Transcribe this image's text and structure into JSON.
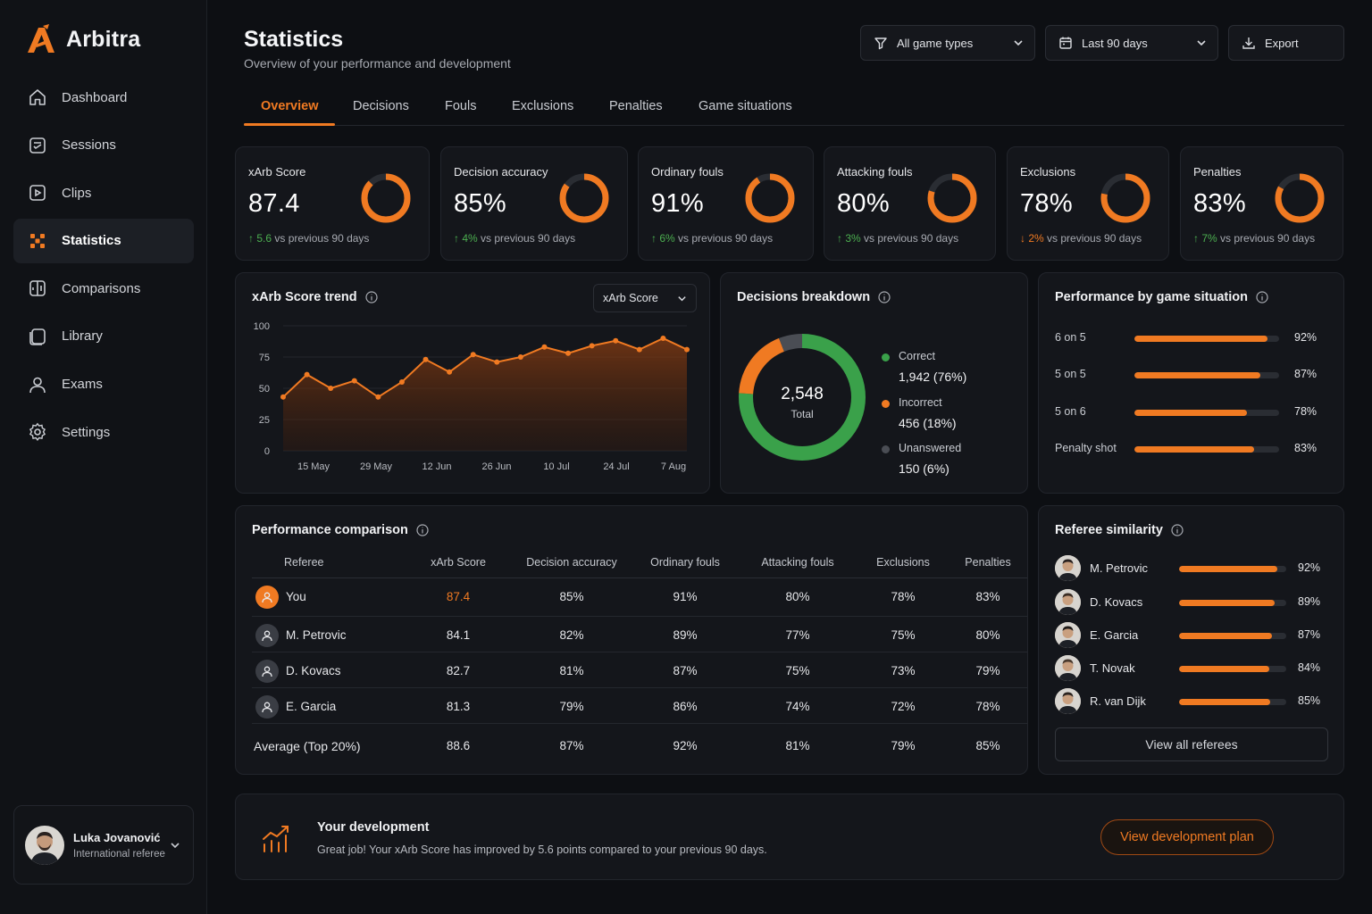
{
  "app": {
    "name": "Arbitra"
  },
  "sidebar": {
    "items": [
      {
        "label": "Dashboard",
        "icon": "home-icon"
      },
      {
        "label": "Sessions",
        "icon": "sessions-icon"
      },
      {
        "label": "Clips",
        "icon": "clips-icon"
      },
      {
        "label": "Statistics",
        "icon": "statistics-icon",
        "active": true
      },
      {
        "label": "Comparisons",
        "icon": "comparisons-icon"
      },
      {
        "label": "Library",
        "icon": "library-icon"
      },
      {
        "label": "Exams",
        "icon": "exams-icon"
      },
      {
        "label": "Settings",
        "icon": "settings-icon"
      }
    ]
  },
  "user": {
    "name": "Luka Jovanović",
    "role": "International referee"
  },
  "header": {
    "title": "Statistics",
    "subtitle": "Overview of your performance and development",
    "filter_game_types": "All game types",
    "filter_period": "Last 90 days",
    "export_label": "Export"
  },
  "tabs": [
    "Overview",
    "Decisions",
    "Fouls",
    "Exclusions",
    "Penalties",
    "Game situations"
  ],
  "kpis": [
    {
      "label": "xArb Score",
      "value": "87.4",
      "delta": "5.6",
      "direction": "up",
      "suffix": "vs previous 90 days",
      "fill": 0.874
    },
    {
      "label": "Decision accuracy",
      "value": "85%",
      "delta": "4%",
      "direction": "up",
      "suffix": "vs previous 90 days",
      "fill": 0.85
    },
    {
      "label": "Ordinary fouls",
      "value": "91%",
      "delta": "6%",
      "direction": "up",
      "suffix": "vs previous 90 days",
      "fill": 0.91
    },
    {
      "label": "Attacking fouls",
      "value": "80%",
      "delta": "3%",
      "direction": "up",
      "suffix": "vs previous 90 days",
      "fill": 0.8
    },
    {
      "label": "Exclusions",
      "value": "78%",
      "delta": "2%",
      "direction": "down",
      "suffix": "vs previous 90 days",
      "fill": 0.78
    },
    {
      "label": "Penalties",
      "value": "83%",
      "delta": "7%",
      "direction": "up",
      "suffix": "vs previous 90 days",
      "fill": 0.83
    }
  ],
  "trend": {
    "title": "xArb Score trend",
    "select_value": "xArb Score"
  },
  "chart_data": {
    "type": "area",
    "x_tick_labels": [
      "15 May",
      "29 May",
      "12 Jun",
      "26 Jun",
      "10 Jul",
      "24 Jul",
      "7 Aug"
    ],
    "y_ticks": [
      0,
      25,
      50,
      75,
      100
    ],
    "ylim": [
      0,
      100
    ],
    "values": [
      43,
      61,
      50,
      56,
      43,
      55,
      73,
      63,
      77,
      71,
      75,
      83,
      78,
      84,
      88,
      81,
      90,
      81
    ],
    "color": "#f07a22"
  },
  "breakdown": {
    "title": "Decisions breakdown",
    "total": "2,548",
    "total_label": "Total",
    "segments": [
      {
        "name": "Correct",
        "value": "1,942 (76%)",
        "share": 0.76,
        "color": "#3aa14a"
      },
      {
        "name": "Incorrect",
        "value": "456 (18%)",
        "share": 0.18,
        "color": "#f07a22"
      },
      {
        "name": "Unanswered",
        "value": "150 (6%)",
        "share": 0.06,
        "color": "#4a4d54"
      }
    ]
  },
  "game_situation": {
    "title": "Performance by game situation",
    "rows": [
      {
        "label": "6 on 5",
        "value": "92%",
        "pct": 0.92
      },
      {
        "label": "5 on 5",
        "value": "87%",
        "pct": 0.87
      },
      {
        "label": "5 on 6",
        "value": "78%",
        "pct": 0.78
      },
      {
        "label": "Penalty shot",
        "value": "83%",
        "pct": 0.83
      }
    ]
  },
  "comparison": {
    "title": "Performance comparison",
    "columns": [
      "Referee",
      "xArb Score",
      "Decision accuracy",
      "Ordinary fouls",
      "Attacking fouls",
      "Exclusions",
      "Penalties"
    ],
    "rows": [
      {
        "name": "You",
        "cells": [
          "87.4",
          "85%",
          "91%",
          "80%",
          "78%",
          "83%"
        ],
        "highlight": true
      },
      {
        "name": "M. Petrovic",
        "cells": [
          "84.1",
          "82%",
          "89%",
          "77%",
          "75%",
          "80%"
        ]
      },
      {
        "name": "D. Kovacs",
        "cells": [
          "82.7",
          "81%",
          "87%",
          "75%",
          "73%",
          "79%"
        ]
      },
      {
        "name": "E. Garcia",
        "cells": [
          "81.3",
          "79%",
          "86%",
          "74%",
          "72%",
          "78%"
        ]
      }
    ],
    "average": {
      "name": "Average (Top 20%)",
      "cells": [
        "88.6",
        "87%",
        "92%",
        "81%",
        "79%",
        "85%"
      ]
    }
  },
  "similarity": {
    "title": "Referee similarity",
    "rows": [
      {
        "name": "M. Petrovic",
        "value": "92%",
        "pct": 0.92
      },
      {
        "name": "D. Kovacs",
        "value": "89%",
        "pct": 0.89
      },
      {
        "name": "E. Garcia",
        "value": "87%",
        "pct": 0.87
      },
      {
        "name": "T. Novak",
        "value": "84%",
        "pct": 0.84
      },
      {
        "name": "R. van Dijk",
        "value": "85%",
        "pct": 0.85
      }
    ],
    "button": "View all referees"
  },
  "development": {
    "title": "Your development",
    "text": "Great job! Your xArb Score has improved by 5.6 points compared to your previous 90 days.",
    "button": "View development plan"
  },
  "colors": {
    "accent": "#f07a22",
    "positive": "#4caf50",
    "background": "#0d0f13",
    "card": "#14161b"
  }
}
